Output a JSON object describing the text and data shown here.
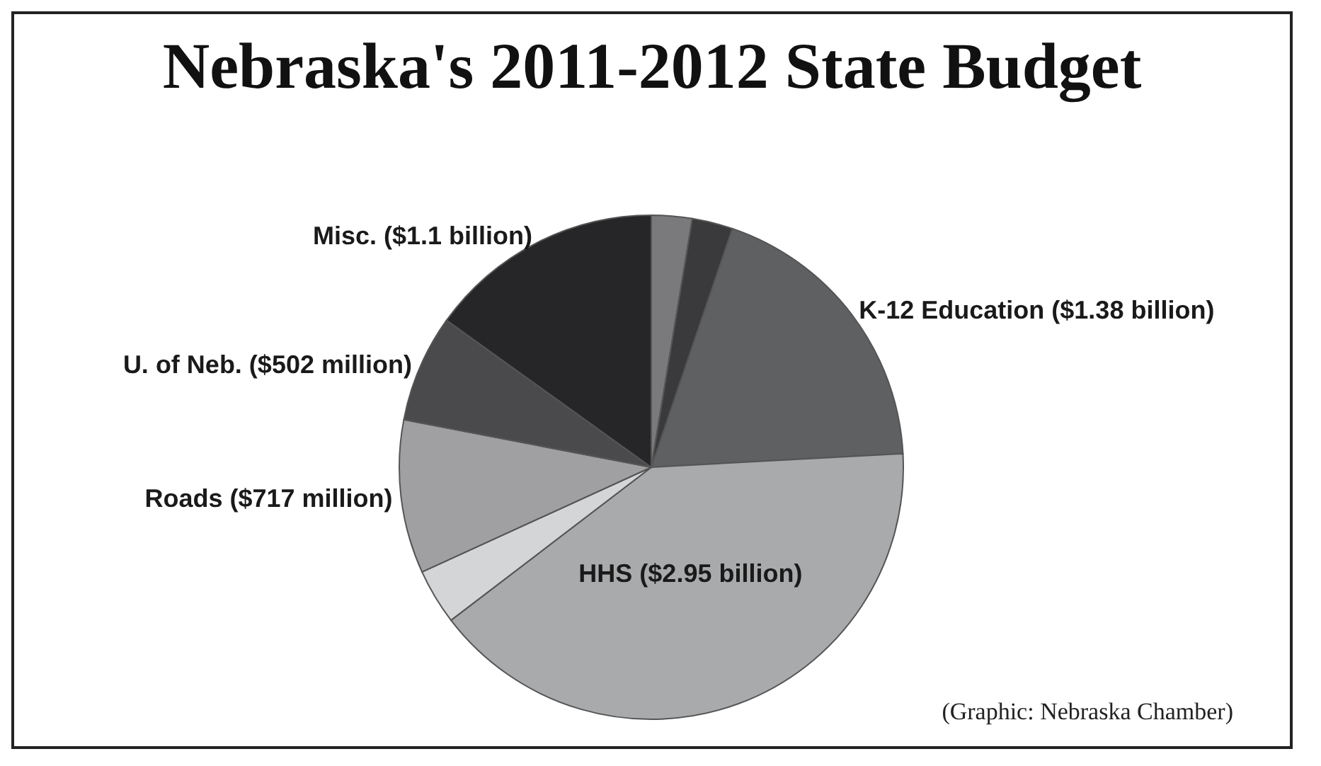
{
  "chart_data": {
    "type": "pie",
    "title": "Nebraska's 2011-2012 State Budget",
    "categories": [
      null,
      null,
      "K-12 Education ($1.38 billion)",
      "HHS ($2.95 billion)",
      null,
      "Roads ($717 million)",
      "U. of Neb. ($502 million)",
      "Misc. ($1.1 billion)"
    ],
    "values": [
      190,
      190,
      1380,
      2950,
      260,
      717,
      502,
      1100
    ],
    "colors": [
      "#7a7a7c",
      "#3a3a3c",
      "#5f6062",
      "#a9aaac",
      "#d4d5d6",
      "#a0a0a2",
      "#4a4a4c",
      "#262628"
    ],
    "annotations": [
      "(Graphic: Nebraska Chamber)"
    ]
  }
}
